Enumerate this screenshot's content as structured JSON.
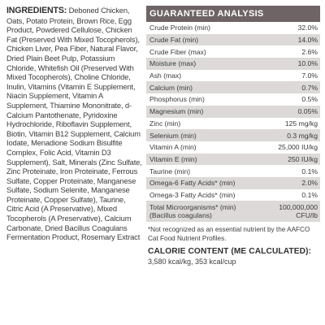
{
  "ingredients": {
    "label": "INGREDIENTS:",
    "text": "Deboned Chicken, Oats, Potato Protein, Brown Rice, Egg Product, Powdered Cellulose, Chicken Fat (Preserved With Mixed Tocopherols), Chicken Liver, Pea Fiber, Natural Flavor, Dried Plain Beet Pulp, Potassium Chloride, Whitefish Oil (Preserved With Mixed Tocopherols), Choline Chloride, Inulin, Vitamins (Vitamin E Supplement, Niacin Supplement, Vitamin A Supplement, Thiamine Mononitrate, d-Calcium Pantothenate, Pyridoxine Hydrochloride, Riboflavin Supplement, Biotin, Vitamin B12 Supplement, Calcium Iodate, Menadione Sodium Bisulfite Complex, Folic Acid, Vitamin D3 Supplement), Salt, Minerals (Zinc Sulfate, Zinc Proteinate, Iron Proteinate, Ferrous Sulfate, Copper Proteinate, Manganese Sulfate, Sodium Selenite, Manganese Proteinate, Copper Sulfate), Taurine, Citric Acid (A Preservative), Mixed Tocopherols (A Preservative), Calcium Carbonate, Dried Bacillus Coagulans Fermentation Product, Rosemary Extract"
  },
  "analysis": {
    "title": "GUARANTEED ANALYSIS",
    "rows": [
      {
        "name": "Crude Protein (min)",
        "value": "32.0%"
      },
      {
        "name": "Crude Fat (min)",
        "value": "14.0%"
      },
      {
        "name": "Crude Fiber (max)",
        "value": "2.6%"
      },
      {
        "name": "Moisture (max)",
        "value": "10.0%"
      },
      {
        "name": "Ash (max)",
        "value": "7.0%"
      },
      {
        "name": "Calcium (min)",
        "value": "0.7%"
      },
      {
        "name": "Phosphorus (min)",
        "value": "0.5%"
      },
      {
        "name": "Magnesium (min)",
        "value": "0.05%"
      },
      {
        "name": "Zinc (min)",
        "value": "125 mg/kg"
      },
      {
        "name": "Selenium (min)",
        "value": "0.3 mg/kg"
      },
      {
        "name": "Vitamin A (min)",
        "value": "25,000 IU/kg"
      },
      {
        "name": "Vitamin E (min)",
        "value": "250 IU/kg"
      },
      {
        "name": "Taurine (min)",
        "value": "0.1%"
      },
      {
        "name": "Omega-6 Fatty Acids* (min)",
        "value": "2.0%"
      },
      {
        "name": "Omega-3 Fatty Acids* (min)",
        "value": "0.1%"
      },
      {
        "name": "Total Microorganisms* (min)\n(Bacillus coagulans)",
        "value": "100,000,000\nCFU/lb"
      }
    ],
    "footnote": "*Not recognized as an essential nutrient by the AAFCO Cat Food Nutrient Profiles."
  },
  "calorie": {
    "title": "CALORIE CONTENT (ME CALCULATED):",
    "value": "3,580 kcal/kg, 353 kcal/cup"
  },
  "colors": {
    "header_bg": "#6e6466",
    "alt_row_bg": "#dcd9d8"
  }
}
